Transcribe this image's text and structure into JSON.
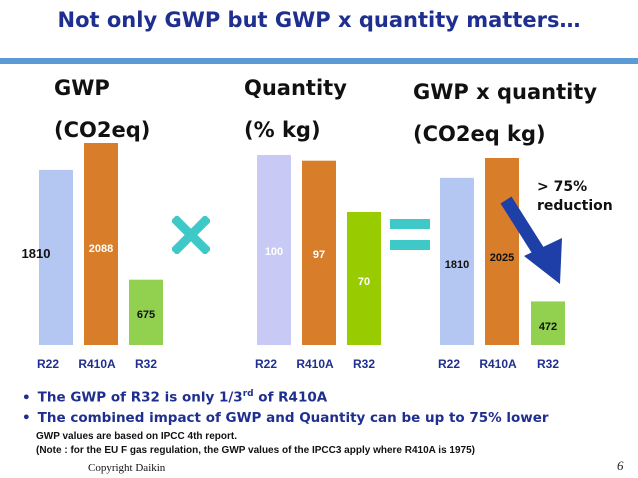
{
  "slide": {
    "title": "Not only GWP but  GWP x quantity matters…",
    "arrow_label_line1": "> 75%",
    "arrow_label_line2": "reduction",
    "bullet1_pre": "The GWP of R32 is only 1/3",
    "bullet1_sup": "rd",
    "bullet1_post": " of R410A",
    "bullet2": "The combined impact of GWP and Quantity can be up to 75% lower",
    "note_line1": "GWP values are based on IPCC 4th report.",
    "note_line2": "(Note : for the EU F gas regulation, the GWP values of the IPCC3 apply where R410A is 1975)",
    "copyright": "Copyright Daikin",
    "page_number": "6"
  },
  "colors": {
    "title": "#1f2f8f",
    "rule": "#5b9bd5",
    "r22": "#b4c7f3",
    "r22_quantity": "#c9c9f5",
    "r410a": "#d87d2a",
    "r32_light": "#92d050",
    "r32_quantity": "#99cc00",
    "operator": "#3ec8c8",
    "arrow": "#1f3fa8"
  },
  "chart_data": [
    {
      "type": "bar",
      "title_line1": "GWP",
      "title_line2": "(CO2eq)",
      "categories": [
        "R22",
        "R410A",
        "R32"
      ],
      "values": [
        1810,
        2088,
        675
      ],
      "data_labels": [
        "1810",
        "2088",
        "675"
      ],
      "ylim": [
        0,
        2088
      ]
    },
    {
      "type": "bar",
      "title_line1": "Quantity",
      "title_line2": "(% kg)",
      "categories": [
        "R22",
        "R410A",
        "R32"
      ],
      "values": [
        100,
        97,
        70
      ],
      "data_labels": [
        "100",
        "97",
        "70"
      ],
      "ylim": [
        0,
        100
      ]
    },
    {
      "type": "bar",
      "title_line1": "GWP x quantity",
      "title_line2": "(CO2eq kg)",
      "categories": [
        "R22",
        "R410A",
        "R32"
      ],
      "values": [
        1810,
        2025,
        472
      ],
      "data_labels": [
        "1810",
        "2025",
        "472"
      ],
      "ylim": [
        0,
        2025
      ]
    }
  ]
}
